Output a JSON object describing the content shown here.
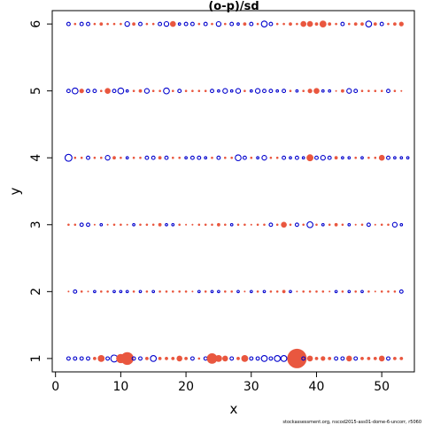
{
  "colors": {
    "positive": "#E9573F",
    "negative": "#0000CC"
  },
  "chart_data": {
    "type": "scatter",
    "title": "(o-p)/sd",
    "xlabel": "x",
    "ylabel": "y",
    "xlim": [
      -0.5,
      55
    ],
    "ylim": [
      0.8,
      6.2
    ],
    "xticks": [
      0,
      10,
      20,
      30,
      40,
      50
    ],
    "yticks": [
      1,
      2,
      3,
      4,
      5,
      6
    ],
    "footnote": "stockassessment.org, nscod2015-ass01-dome-6-uncorr, r5060",
    "encoding": "open blue circle = negative residual, filled orange circle = positive residual, size = magnitude",
    "rows": [
      {
        "y": 1,
        "v": [
          -0.3,
          -0.3,
          -0.3,
          -0.3,
          0.3,
          0.6,
          -0.3,
          -0.6,
          0.8,
          1.1,
          -0.3,
          -0.3,
          0.3,
          -0.5,
          0.3,
          0.3,
          0.3,
          0.5,
          0.3,
          -0.3,
          0.2,
          -0.3,
          0.9,
          0.6,
          0.5,
          -0.3,
          0.3,
          0.6,
          -0.3,
          -0.3,
          -0.5,
          -0.3,
          -0.5,
          -0.5,
          -0.5,
          1.7,
          -0.3,
          0.5,
          0.3,
          0.4,
          0.3,
          -0.3,
          -0.3,
          0.5,
          -0.3,
          0.3,
          0.3,
          0.3,
          0.5,
          -0.3,
          0.3,
          0.3
        ]
      },
      {
        "y": 2,
        "v": [
          0.1,
          -0.3,
          0.2,
          0.1,
          -0.2,
          0.2,
          0.2,
          -0.2,
          -0.2,
          -0.2,
          0.2,
          -0.2,
          0.2,
          -0.2,
          0.2,
          0.2,
          0.2,
          0.2,
          0.2,
          0.1,
          -0.2,
          0.2,
          -0.2,
          -0.2,
          0.2,
          0.2,
          -0.2,
          0.1,
          -0.2,
          0.2,
          -0.2,
          0.2,
          0.2,
          0.3,
          -0.2,
          0.1,
          0.2,
          0.2,
          0.2,
          0.2,
          0.1,
          -0.2,
          0.2,
          -0.2,
          0.2,
          -0.2,
          0.2,
          0.1,
          0.2,
          0.2,
          0.2,
          -0.3
        ]
      },
      {
        "y": 3,
        "v": [
          0.2,
          0.2,
          -0.3,
          -0.3,
          0.1,
          -0.2,
          0.1,
          0.2,
          0.2,
          0.1,
          -0.2,
          0.2,
          0.2,
          0.2,
          0.3,
          -0.2,
          -0.2,
          0.2,
          0.1,
          0.1,
          0.2,
          0.2,
          0.2,
          0.3,
          0.2,
          -0.2,
          0.2,
          0.2,
          0.1,
          0.2,
          0.2,
          -0.3,
          0.2,
          0.5,
          0.2,
          -0.3,
          0.2,
          -0.5,
          0.2,
          -0.2,
          0.2,
          0.3,
          0.2,
          -0.2,
          0.1,
          0.2,
          -0.3,
          0.1,
          0.2,
          0.2,
          -0.4,
          -0.2
        ]
      },
      {
        "y": 4,
        "v": [
          -0.6,
          0.2,
          0.2,
          -0.3,
          0.2,
          0.2,
          -0.4,
          0.3,
          0.2,
          -0.2,
          0.2,
          0.2,
          -0.3,
          -0.3,
          0.3,
          -0.3,
          0.2,
          0.2,
          -0.2,
          -0.3,
          -0.3,
          -0.2,
          0.2,
          -0.3,
          0.2,
          0.2,
          -0.5,
          -0.3,
          0.2,
          -0.2,
          -0.4,
          0.2,
          0.2,
          -0.3,
          -0.2,
          -0.3,
          -0.2,
          0.6,
          -0.3,
          -0.4,
          -0.3,
          0.3,
          -0.2,
          -0.2,
          0.2,
          -0.2,
          0.2,
          0.2,
          0.5,
          -0.3,
          -0.2,
          -0.2,
          -0.2
        ]
      },
      {
        "y": 5,
        "v": [
          -0.3,
          -0.5,
          0.4,
          -0.3,
          -0.3,
          0.2,
          0.5,
          -0.3,
          -0.5,
          -0.2,
          0.2,
          0.3,
          -0.4,
          0.2,
          0.2,
          -0.5,
          0.2,
          -0.3,
          0.2,
          0.2,
          0.2,
          0.2,
          -0.3,
          -0.2,
          -0.4,
          -0.2,
          -0.4,
          0.2,
          -0.2,
          -0.4,
          -0.3,
          -0.3,
          -0.2,
          -0.3,
          0.2,
          -0.2,
          0.2,
          0.4,
          0.5,
          -0.2,
          -0.2,
          0.1,
          0.3,
          -0.4,
          -0.3,
          0.2,
          0.2,
          0.2,
          0.2,
          -0.3,
          0.2,
          0.1
        ]
      },
      {
        "y": 6,
        "v": [
          -0.3,
          0.2,
          -0.3,
          -0.3,
          0.2,
          0.3,
          0.2,
          0.2,
          0.2,
          -0.4,
          0.3,
          -0.3,
          0.2,
          0.2,
          -0.3,
          -0.4,
          0.5,
          -0.2,
          -0.3,
          -0.3,
          0.2,
          -0.3,
          0.2,
          -0.4,
          0.2,
          -0.3,
          -0.2,
          0.3,
          -0.3,
          0.2,
          -0.5,
          -0.3,
          0.2,
          0.2,
          0.3,
          0.2,
          0.5,
          0.5,
          0.3,
          0.6,
          0.3,
          0.2,
          -0.3,
          0.2,
          0.3,
          0.3,
          -0.5,
          0.3,
          -0.3,
          0.2,
          0.3,
          0.4
        ]
      }
    ]
  }
}
